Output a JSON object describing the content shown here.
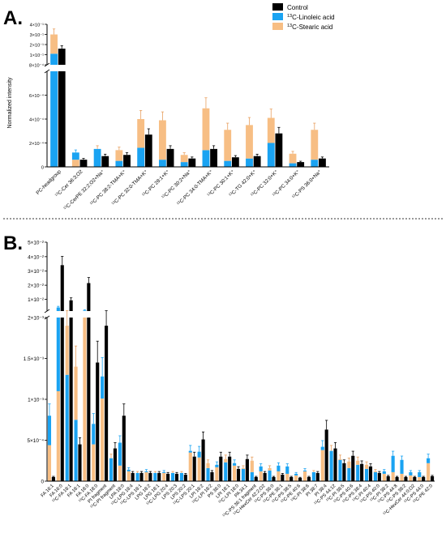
{
  "colors": {
    "control": "#000000",
    "linoleic": "#1aa3f2",
    "stearic": "#f7be84",
    "error_control": "#000000",
    "error_linoleic": "#1aa3f2",
    "error_stearic": "#e8a060"
  },
  "panel_a": {
    "letter": "A.",
    "ylabel": "Normalized intensity"
  },
  "panel_b": {
    "letter": "B."
  },
  "chart_data": [
    {
      "panel": "A",
      "type": "bar",
      "stacked_isotopes": true,
      "ylabel": "Normalized intensity",
      "ylim": [
        0,
        0.0004
      ],
      "axis_break": true,
      "legend": {
        "placement": "top-right",
        "entries": [
          "Control",
          "13C-Linoleic acid",
          "13C-Stearic acid"
        ]
      },
      "upper_ticks": [
        "4×10⁻¹",
        "3×10⁻¹",
        "2×10⁻¹",
        "1×10⁻¹",
        "8×10⁻⁴"
      ],
      "lower_ticks": [
        "6×10⁻⁴",
        "4×10⁻⁴",
        "2×10⁻⁴",
        "0"
      ],
      "categories": [
        "PC-headgroup",
        "¹³C-Cer 36:3;O2",
        "¹³C-CerPE 32:2;O2+Na⁺",
        "¹³C-PC 38:2-TMA+K⁺",
        "¹³C-PC 32:0-TMA+K⁺",
        "¹³C-PC 28:1+K⁺",
        "¹³C-PC 30:2+Na⁺",
        "¹³C-PC 34:0-TMA+K⁺",
        "¹³C-PC 30:1+K⁺",
        "¹³C-TG 42:0+K⁺",
        "¹³C-PC 32:0+K⁺",
        "¹³C-PC 34:0+K⁺",
        "¹³C-PS 36:0+Na⁺"
      ],
      "series": [
        {
          "name": "Control",
          "values": [
            0.16,
            6e-05,
            9e-05,
            0.0001,
            0.00027,
            0.00015,
            7e-05,
            0.00015,
            8e-05,
            9e-05,
            0.00028,
            4e-05,
            7e-05
          ]
        },
        {
          "name": "13C-Linoleic acid",
          "values": [
            0.11,
            0.00012,
            0.00015,
            5e-05,
            0.00016,
            6e-05,
            4e-05,
            0.00014,
            5e-05,
            7e-05,
            0.0002,
            3e-05,
            6e-05
          ]
        },
        {
          "name": "13C-Stearic acid",
          "values": [
            0.3,
            6e-05,
            0.00015,
            0.00014,
            0.0004,
            0.00039,
            0.0001,
            0.00049,
            0.00031,
            0.00035,
            0.00041,
            0.00011,
            0.00031
          ]
        }
      ]
    },
    {
      "panel": "B",
      "type": "bar",
      "stacked_isotopes": true,
      "ylim": [
        0,
        0.002
      ],
      "axis_break": true,
      "upper_ticks": [
        "5×10⁻²",
        "4×10⁻²",
        "3×10⁻²",
        "2×10⁻²",
        "1×10⁻²"
      ],
      "lower_ticks": [
        "2×10⁻³",
        "1.5×10⁻³",
        "1×10⁻³",
        "5×10⁻⁴",
        "0"
      ],
      "categories": [
        "FA 16:1",
        "FA 16:0",
        "¹³C-FA 18:1",
        "FA 18:1",
        "FA 18:0",
        "¹³C-FA 18:0",
        "PI fragment",
        "¹³C-PI fragment",
        "LPA 18:0",
        "¹³C-LPG 18:4",
        "¹³C-LPS 18:1",
        "LPG 18:2",
        "LPG 18:1",
        "¹³C-LPG 20:4",
        "LPS 20:3",
        "LPS 20:2",
        "¹³C-LPS 20:1",
        "LPI 18:2",
        "¹³C-LPI 18:2",
        "PS 36:0",
        "LPI 18:1",
        "¹³C-LPI 18:0",
        "PA 34:1",
        "¹³C-PS 36:1 fragment",
        "¹³C-HexCer 42:2;O2",
        "¹³C-PS 36:0",
        "¹³C-PE 36:1",
        "¹³C-PS 38:5",
        "¹³C-PE 40:6",
        "¹³C-PI 38:6",
        "PI 38:7",
        "PI 38:4",
        "¹³C-PS 44:12",
        "¹³C-PI 38:5",
        "¹³C-PS 40:6",
        "¹³C-PS 38:4",
        "¹³C-PI 40:4",
        "¹³C-PS 40:0",
        "¹³C-PI 38:2",
        "¹³C-PS 44:8",
        "¹³C-PS 38:2",
        "¹³C-HexCer 44:0;O2",
        "¹³C-PS 44:0",
        "¹³C-PE 42:0"
      ],
      "series": [
        {
          "name": "Control",
          "values": [
            5e-05,
            0.034,
            0.0095,
            0.00045,
            0.0215,
            0.00145,
            0.0019,
            0.0004,
            0.0008,
            0.0001,
            0.0001,
            0.0001,
            0.0001,
            9e-05,
            9e-05,
            8e-05,
            0.0003,
            0.00051,
            0.00011,
            0.0003,
            0.0003,
            0.00015,
            0.00027,
            5e-05,
            0.0001,
            5e-05,
            8e-05,
            5e-05,
            4e-05,
            5e-05,
            0.0001,
            0.00063,
            0.0004,
            0.00022,
            0.00031,
            0.00021,
            0.00018,
            0.0001,
            6e-05,
            5e-05,
            5e-05,
            5e-05,
            5e-05,
            6e-05
          ]
        },
        {
          "name": "13C-Linoleic acid",
          "values": [
            0.0008,
            0.0045,
            0.0013,
            0.00075,
            0.0025,
            0.0007,
            0.00128,
            0.00028,
            0.00047,
            0.00014,
            0.0001,
            0.00012,
            0.0001,
            0.00011,
            0.0001,
            0.0001,
            0.00037,
            0.00036,
            0.00016,
            0.0002,
            0.00023,
            0.00022,
            0.00015,
            0.00011,
            0.00018,
            0.00013,
            0.00019,
            0.00018,
            9e-05,
            0.00013,
            0.00011,
            0.00042,
            0.00037,
            0.00026,
            0.00016,
            0.0002,
            0.00015,
            0.00011,
            0.00012,
            0.00031,
            0.00026,
            0.00011,
            0.00011,
            0.00028
          ]
        },
        {
          "name": "13C-Stearic acid",
          "values": [
            0.00044,
            0.0011,
            0.0019,
            0.0014,
            0.0021,
            0.00045,
            0.00101,
            0.00028,
            0.00019,
            0.00012,
            0.0001,
            0.00011,
            0.0001,
            0.0001,
            0.0001,
            0.0001,
            0.00035,
            0.00029,
            0.00022,
            0.00017,
            0.00027,
            0.00019,
            0.00016,
            0.00025,
            0.00012,
            0.00016,
            0.00012,
            9e-05,
            7e-05,
            0.00012,
            0.00011,
            0.00038,
            0.00037,
            0.00027,
            0.00024,
            0.00025,
            0.0002,
            0.00012,
            9e-05,
            0.00011,
            9e-05,
            7e-05,
            5e-05,
            0.00022
          ]
        }
      ]
    }
  ]
}
